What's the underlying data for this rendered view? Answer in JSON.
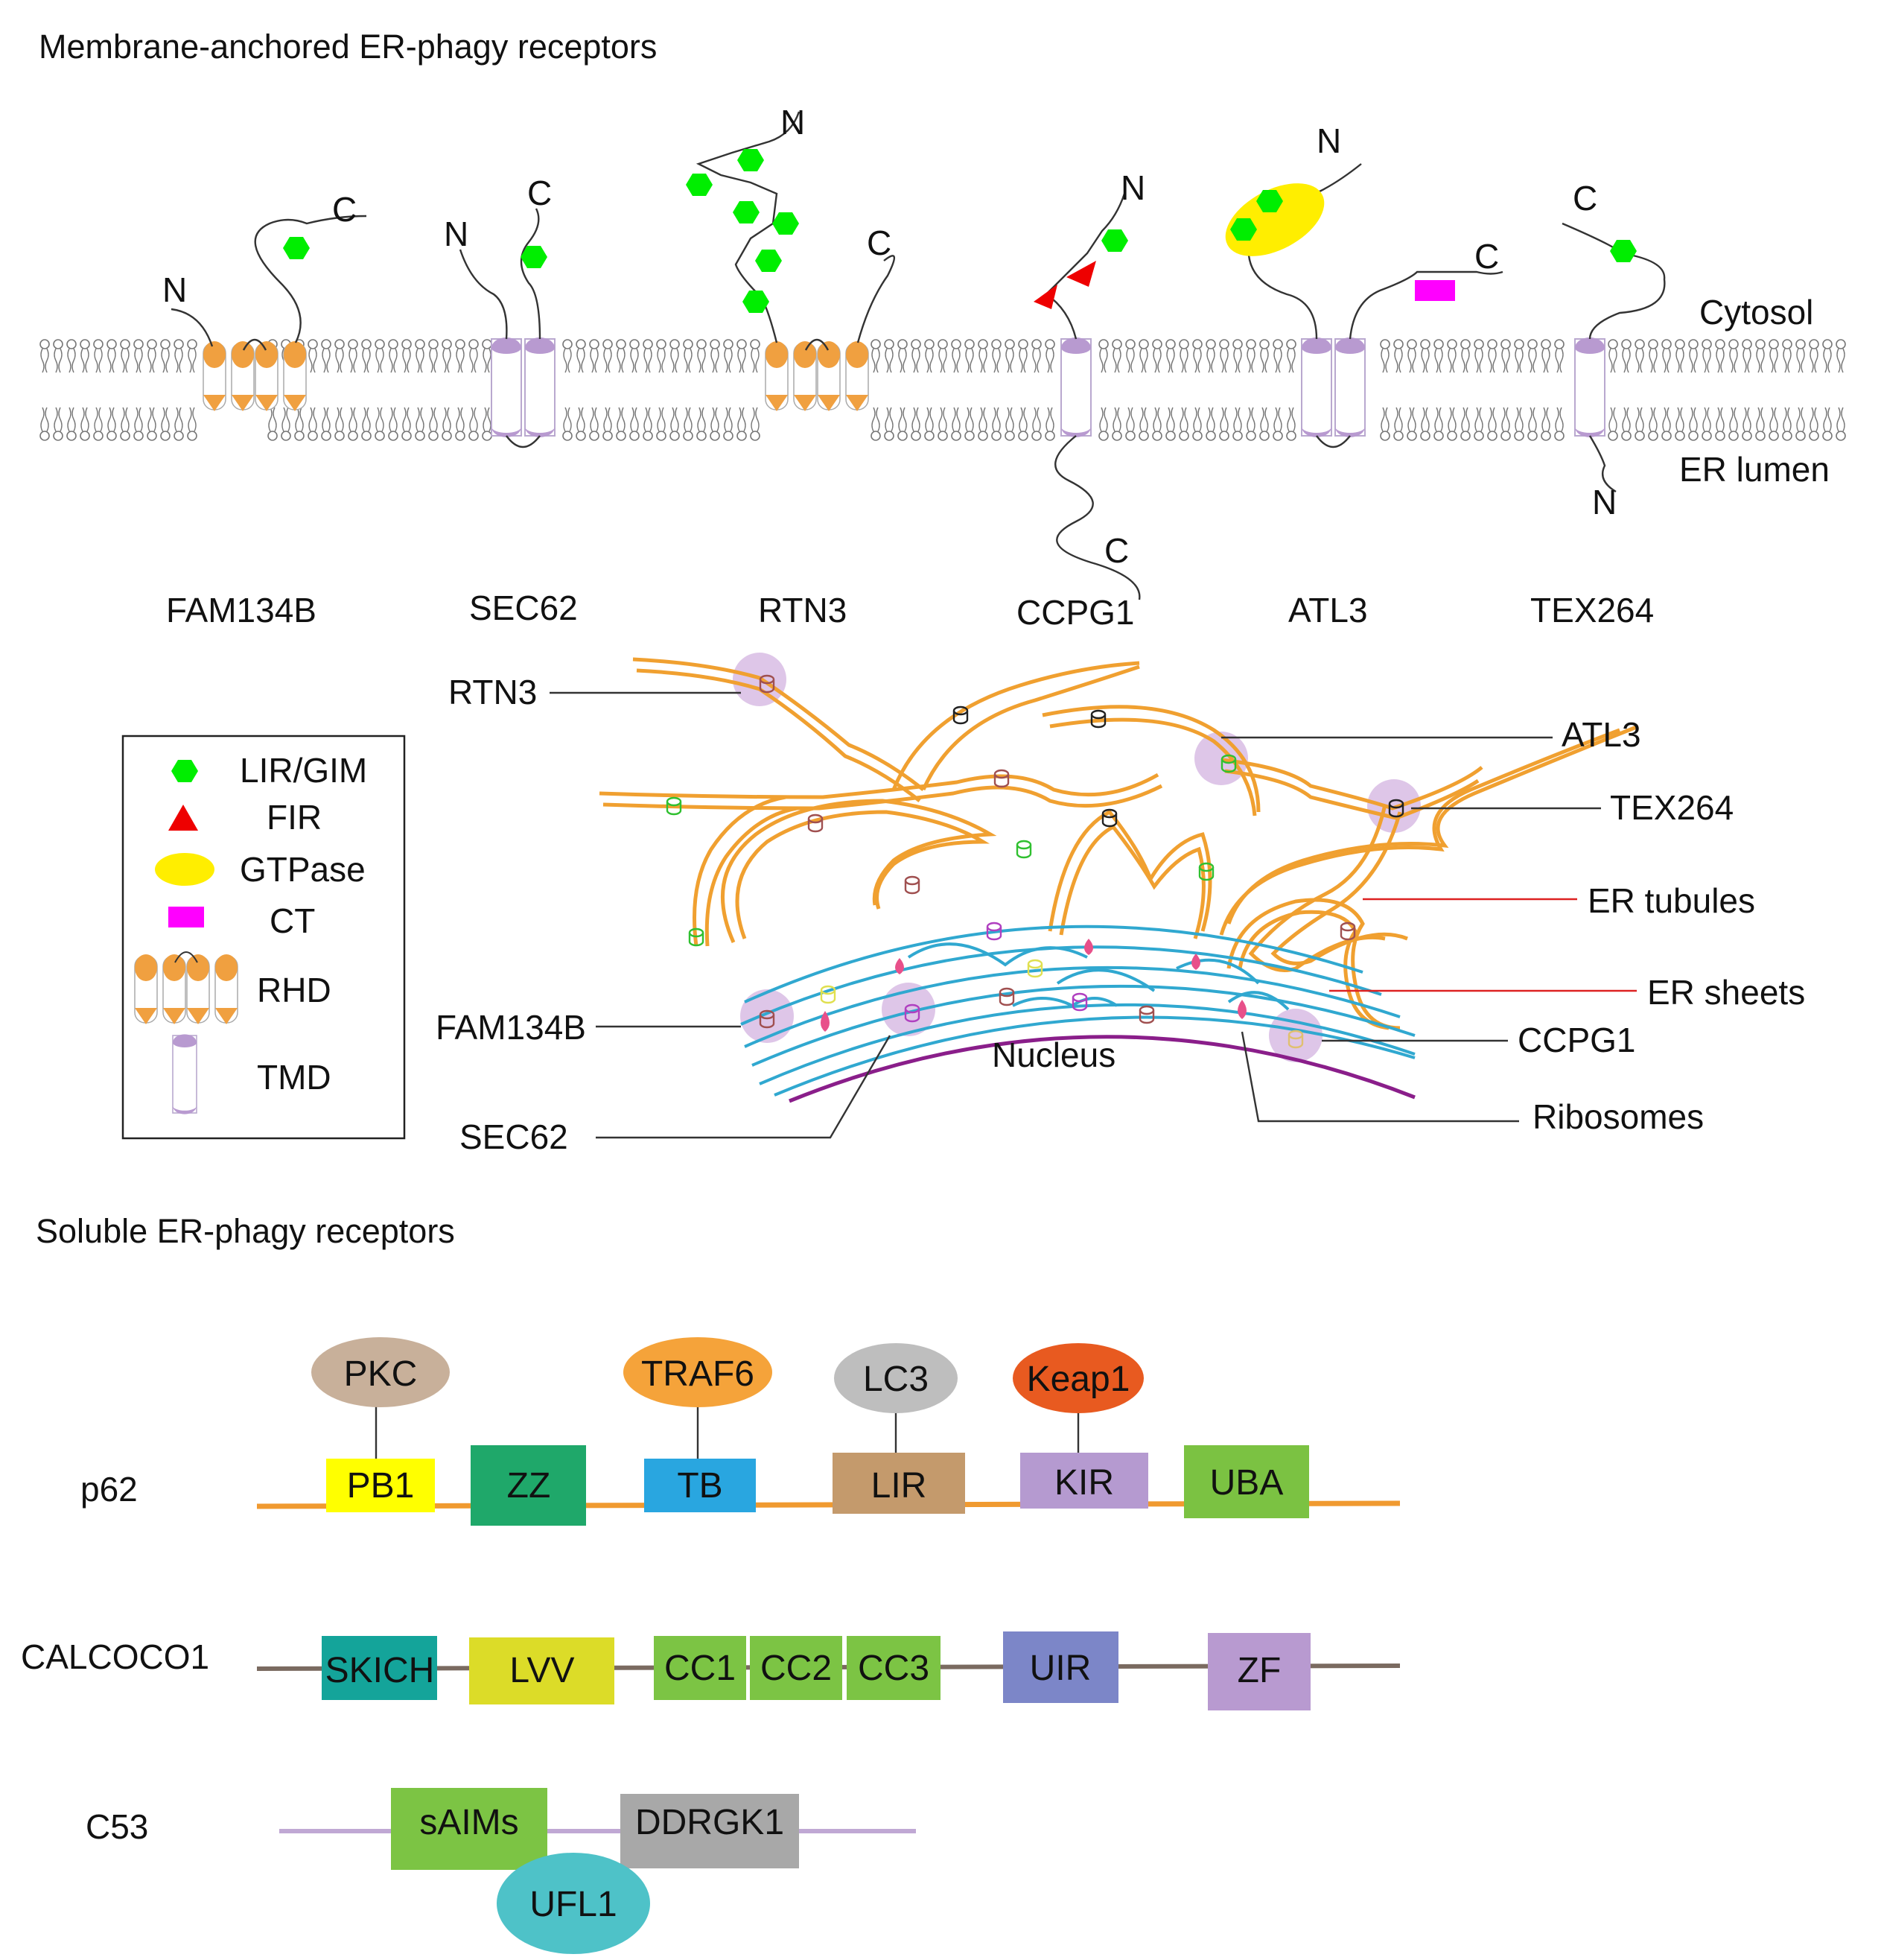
{
  "membrane_section": {
    "title": "Membrane-anchored ER-phagy receptors",
    "side_labels": {
      "cytosol": "Cytosol",
      "lumen": "ER lumen"
    },
    "receptors": [
      {
        "name": "FAM134B",
        "n": "N",
        "c": "C"
      },
      {
        "name": "SEC62",
        "n": "N",
        "c": "C"
      },
      {
        "name": "RTN3",
        "n": "N",
        "c": "C"
      },
      {
        "name": "CCPG1",
        "n": "N",
        "c": "C"
      },
      {
        "name": "ATL3",
        "n": "N",
        "c": "C"
      },
      {
        "name": "TEX264",
        "n": "N",
        "c": "C"
      }
    ]
  },
  "legend": {
    "items": [
      "LIR/GIM",
      "FIR",
      "GTPase",
      "CT",
      "RHD",
      "TMD"
    ],
    "colors": {
      "lir": "#00ee00",
      "fir": "#ee0000",
      "gtpase": "#ffee00",
      "ct": "#ff00ff",
      "rhd": "#f0a040",
      "tmd": "#b89ad0"
    }
  },
  "er_diagram": {
    "left_callouts": [
      "RTN3",
      "FAM134B",
      "SEC62"
    ],
    "right_callouts": [
      "ATL3",
      "TEX264",
      "ER tubules",
      "ER sheets",
      "CCPG1",
      "Ribosomes"
    ],
    "nucleus": "Nucleus",
    "colors": {
      "tubules": "#f0a030",
      "sheets": "#30a8d0",
      "nucleus_envelope": "#8a1e8a",
      "highlight": "#c8a0d8"
    }
  },
  "soluble_section": {
    "title": "Soluble ER-phagy receptors",
    "proteins": [
      {
        "name": "p62",
        "line_color": "#f09a30",
        "domains": [
          {
            "label": "PB1",
            "color": "#ffff00"
          },
          {
            "label": "ZZ",
            "color": "#1fa86a"
          },
          {
            "label": "TB",
            "color": "#29a6e0"
          },
          {
            "label": "LIR",
            "color": "#c49a6c"
          },
          {
            "label": "KIR",
            "color": "#b59ad0"
          },
          {
            "label": "UBA",
            "color": "#7bc242"
          }
        ],
        "binders": [
          {
            "label": "PKC",
            "color": "#c8b09a"
          },
          {
            "label": "TRAF6",
            "color": "#f5a33a"
          },
          {
            "label": "LC3",
            "color": "#bebebe"
          },
          {
            "label": "Keap1",
            "color": "#e85a20"
          }
        ]
      },
      {
        "name": "CALCOCO1",
        "line_color": "#7a6a60",
        "domains": [
          {
            "label": "SKICH",
            "color": "#14a49a"
          },
          {
            "label": "LVV",
            "color": "#dcdc28"
          },
          {
            "label": "CC1",
            "color": "#7cc444"
          },
          {
            "label": "CC2",
            "color": "#7cc444"
          },
          {
            "label": "CC3",
            "color": "#7cc444"
          },
          {
            "label": "UIR",
            "color": "#7c86c8"
          },
          {
            "label": "ZF",
            "color": "#b89ad0"
          }
        ]
      },
      {
        "name": "C53",
        "line_color": "#c0a8d4",
        "domains": [
          {
            "label": "sAIMs",
            "color": "#7cc444"
          },
          {
            "label": "DDRGK1",
            "color": "#a8a8a8"
          }
        ],
        "binders": [
          {
            "label": "UFL1",
            "color": "#4ec2c8"
          }
        ]
      }
    ]
  }
}
